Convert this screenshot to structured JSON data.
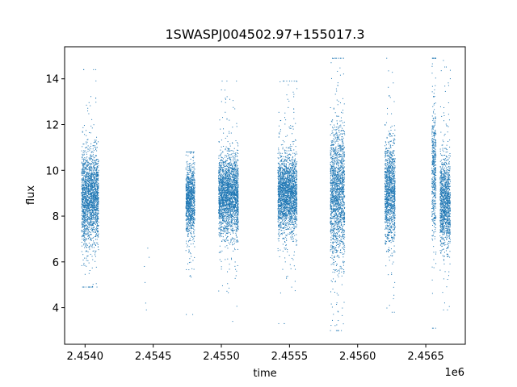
{
  "chart_data": {
    "type": "scatter",
    "title": "1SWASPJ004502.97+155017.3",
    "xlabel": "time",
    "ylabel": "flux",
    "x_offset_label": "1e6",
    "xlim": [
      2453850,
      2456790
    ],
    "ylim": [
      2.4,
      15.4
    ],
    "xticks": [
      2454000,
      2454500,
      2455000,
      2455500,
      2456000,
      2456500
    ],
    "xtick_labels": [
      "2.4540",
      "2.4545",
      "2.4550",
      "2.4555",
      "2.4560",
      "2.4565"
    ],
    "yticks": [
      4,
      6,
      8,
      10,
      12,
      14
    ],
    "ytick_labels": [
      "4",
      "6",
      "8",
      "10",
      "12",
      "14"
    ],
    "grid": false,
    "marker_color": "#1f77b4",
    "series": [
      {
        "segments": [
          {
            "x_start": 2453975,
            "x_end": 2454100,
            "y_center": 8.8,
            "y_spread_core": 1.3,
            "y_min": 4.9,
            "y_max": 14.4
          },
          {
            "x_start": 2454740,
            "x_end": 2454805,
            "y_center": 8.7,
            "y_spread_core": 1.0,
            "y_min": 3.7,
            "y_max": 10.8
          },
          {
            "x_start": 2454980,
            "x_end": 2455125,
            "y_center": 8.9,
            "y_spread_core": 1.1,
            "y_min": 3.4,
            "y_max": 13.9
          },
          {
            "x_start": 2455415,
            "x_end": 2455555,
            "y_center": 9.0,
            "y_spread_core": 1.1,
            "y_min": 3.3,
            "y_max": 13.9
          },
          {
            "x_start": 2455800,
            "x_end": 2455905,
            "y_center": 9.0,
            "y_spread_core": 1.9,
            "y_min": 3.0,
            "y_max": 14.9
          },
          {
            "x_start": 2456200,
            "x_end": 2456275,
            "y_center": 9.0,
            "y_spread_core": 1.4,
            "y_min": 3.8,
            "y_max": 14.9
          },
          {
            "x_start": 2456545,
            "x_end": 2456575,
            "y_center": 10.0,
            "y_spread_core": 1.9,
            "y_min": 3.1,
            "y_max": 14.9
          },
          {
            "x_start": 2456605,
            "x_end": 2456680,
            "y_center": 8.6,
            "y_spread_core": 1.3,
            "y_min": 3.9,
            "y_max": 14.8
          }
        ],
        "sparse_points": [
          {
            "x": 2454435,
            "y": 5.8
          },
          {
            "x": 2454440,
            "y": 5.1
          },
          {
            "x": 2454445,
            "y": 4.2
          },
          {
            "x": 2454450,
            "y": 3.9
          },
          {
            "x": 2454460,
            "y": 6.6
          },
          {
            "x": 2454470,
            "y": 6.2
          }
        ]
      }
    ]
  }
}
